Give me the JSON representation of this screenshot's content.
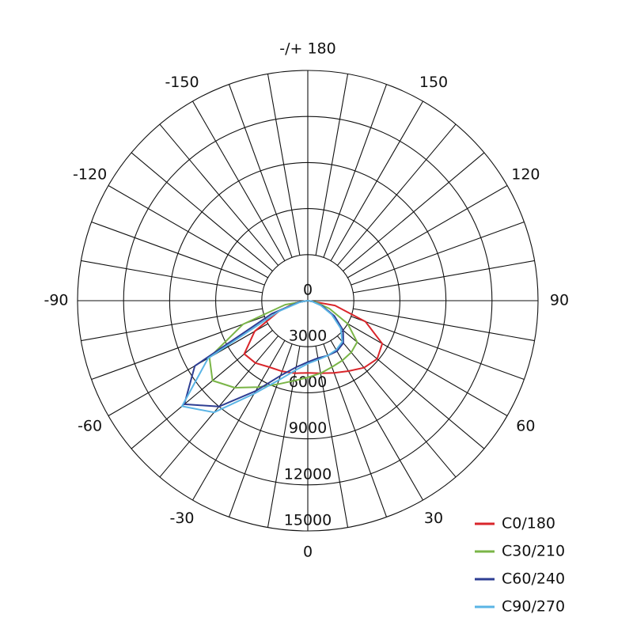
{
  "chart_data": {
    "type": "polar",
    "x": [
      -90,
      -80,
      -70,
      -60,
      -50,
      -40,
      -30,
      -20,
      -10,
      0,
      10,
      20,
      30,
      40,
      50,
      60,
      70,
      80,
      90
    ],
    "series": [
      {
        "name": "C0/180",
        "color": "#d9262b",
        "values": [
          0,
          800,
          2000,
          4000,
          5400,
          5300,
          5000,
          4900,
          4800,
          4700,
          4800,
          5000,
          5300,
          5700,
          5900,
          5600,
          4000,
          1800,
          0
        ]
      },
      {
        "name": "C30/210",
        "color": "#7ab547",
        "values": [
          0,
          1500,
          4500,
          7400,
          8100,
          7400,
          6500,
          5800,
          5300,
          5000,
          4800,
          4600,
          4500,
          4400,
          4200,
          3000,
          1500,
          500,
          0
        ]
      },
      {
        "name": "C60/240",
        "color": "#2e3e93",
        "values": [
          0,
          600,
          2500,
          8500,
          10500,
          9000,
          6800,
          5200,
          4400,
          4000,
          3800,
          3800,
          3800,
          3600,
          3000,
          2000,
          1000,
          300,
          0
        ]
      },
      {
        "name": "C90/270",
        "color": "#5ab4e5",
        "values": [
          0,
          500,
          2000,
          7500,
          10700,
          9500,
          7000,
          5500,
          4600,
          4100,
          3900,
          3800,
          3700,
          3500,
          2800,
          1800,
          900,
          300,
          0
        ]
      }
    ],
    "ylim": [
      0,
      15000
    ],
    "yticks": [
      0,
      3000,
      6000,
      9000,
      12000,
      15000
    ],
    "xticks": [
      {
        "value": 180,
        "label": "-/+ 180"
      },
      150,
      120,
      90,
      60,
      30,
      0,
      -30,
      -60,
      -90,
      -120,
      -150
    ],
    "legend": "bottom-right"
  }
}
